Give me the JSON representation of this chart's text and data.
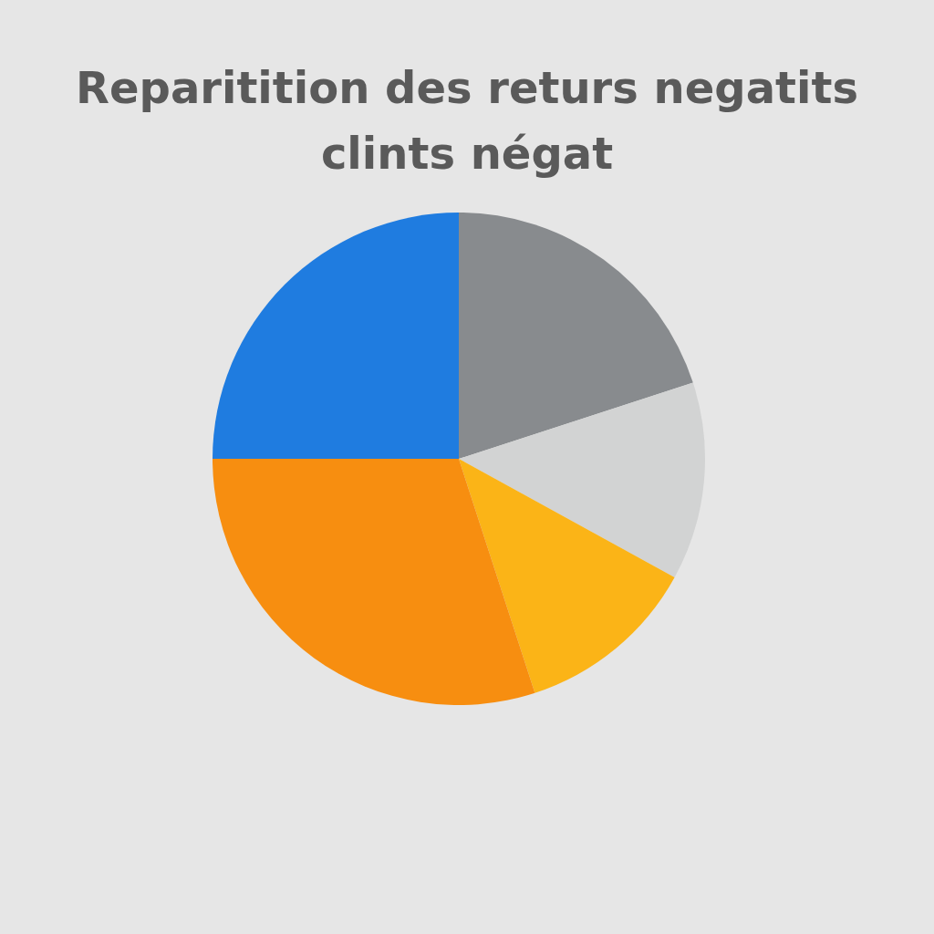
{
  "chart_data": {
    "type": "pie",
    "title": "Reparitition des returs negatits\nclints négat",
    "categories": [
      null,
      null,
      null,
      null,
      null
    ],
    "values": [
      20,
      13,
      12,
      30,
      25
    ],
    "colors": [
      "#888b8e",
      "#d2d3d3",
      "#fbb417",
      "#f78e10",
      "#1f7ce0"
    ]
  }
}
